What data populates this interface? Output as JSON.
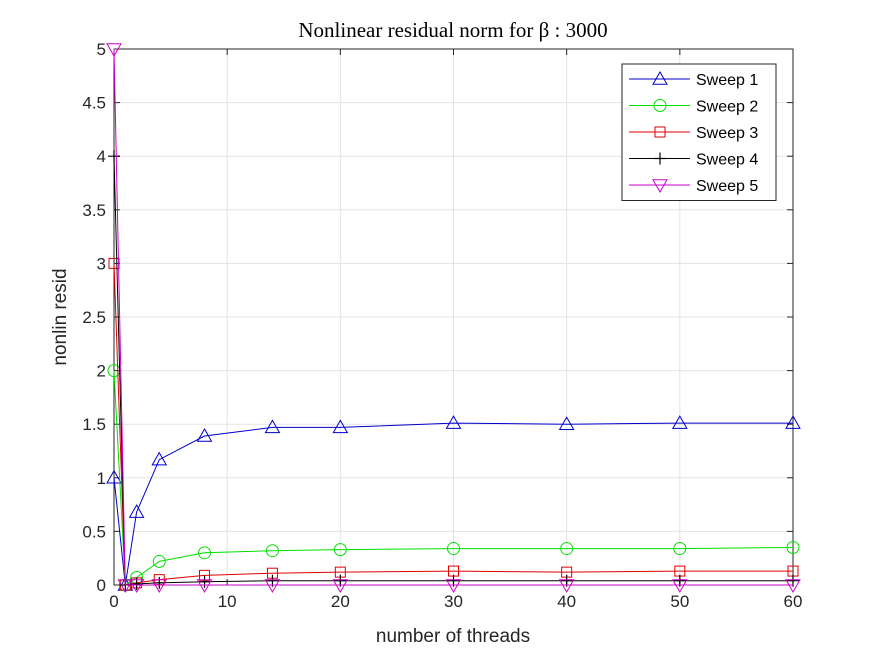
{
  "chart_data": {
    "type": "line",
    "title": "Nonlinear residual norm for β : 3000",
    "xlabel": "number of threads",
    "ylabel": "nonlin resid",
    "xlim": [
      0,
      60
    ],
    "ylim": [
      0,
      5
    ],
    "xticks": [
      "0",
      "10",
      "20",
      "30",
      "40",
      "50",
      "60"
    ],
    "yticks": [
      "0",
      "0.5",
      "1",
      "1.5",
      "2",
      "2.5",
      "3",
      "3.5",
      "4",
      "4.5",
      "5"
    ],
    "grid": true,
    "legend_position": "top-right",
    "x": [
      0,
      1,
      2,
      4,
      8,
      14,
      20,
      30,
      40,
      50,
      60
    ],
    "series": [
      {
        "name": "Sweep 1",
        "color": "#0000cc",
        "marker": "triangle-up",
        "values": [
          1.0,
          0.0,
          0.68,
          1.17,
          1.39,
          1.47,
          1.47,
          1.51,
          1.5,
          1.51,
          1.51
        ]
      },
      {
        "name": "Sweep 2",
        "color": "#00e000",
        "marker": "circle",
        "values": [
          2.0,
          0.0,
          0.07,
          0.22,
          0.3,
          0.32,
          0.33,
          0.34,
          0.34,
          0.34,
          0.35
        ]
      },
      {
        "name": "Sweep 3",
        "color": "#e00000",
        "marker": "square",
        "values": [
          3.0,
          0.0,
          0.02,
          0.05,
          0.09,
          0.11,
          0.12,
          0.13,
          0.12,
          0.13,
          0.13
        ]
      },
      {
        "name": "Sweep 4",
        "color": "#000000",
        "marker": "plus",
        "values": [
          4.0,
          0.0,
          0.01,
          0.02,
          0.03,
          0.04,
          0.04,
          0.04,
          0.04,
          0.04,
          0.04
        ]
      },
      {
        "name": "Sweep 5",
        "color": "#cc00cc",
        "marker": "triangle-down",
        "values": [
          5.0,
          0.0,
          0.0,
          0.0,
          0.0,
          0.0,
          0.0,
          0.0,
          0.0,
          0.0,
          0.0
        ]
      }
    ]
  }
}
